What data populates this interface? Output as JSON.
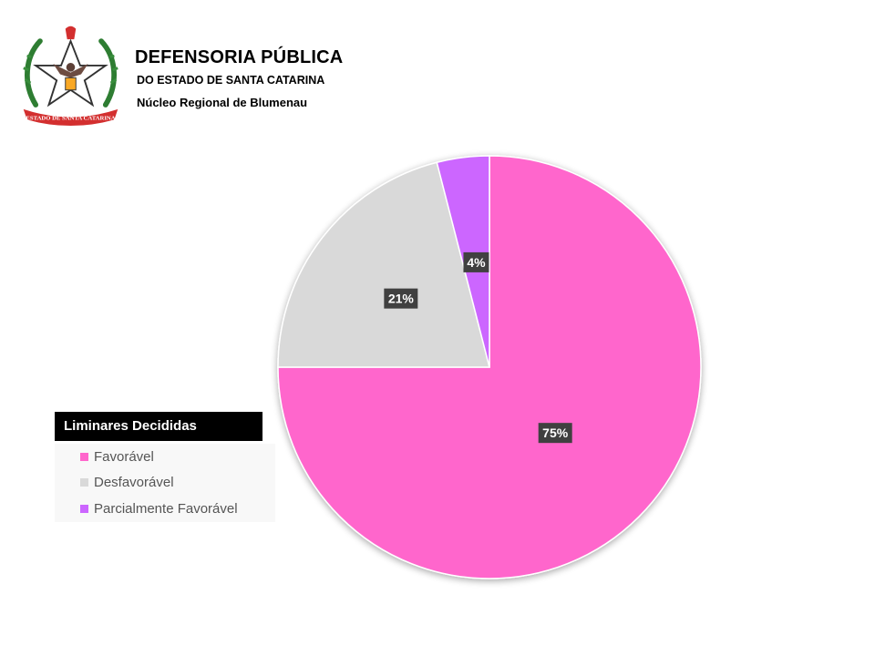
{
  "header": {
    "title": "DEFENSORIA PÚBLICA",
    "subtitle": "DO ESTADO DE SANTA CATARINA",
    "unit": "Núcleo Regional de Blumenau",
    "emblem_banner_text": "ESTADO DE SANTA CATARINA"
  },
  "legend": {
    "title": "Liminares Decididas",
    "items": [
      "Favorável",
      "Desfavorável",
      "Parcialmente Favorável"
    ]
  },
  "colors": {
    "favoravel": "#ff66cc",
    "desfavoravel": "#d9d9d9",
    "parcial": "#cc66ff",
    "label_bg": "#404040"
  },
  "chart_data": {
    "type": "pie",
    "title": "Liminares Decididas",
    "categories": [
      "Favorável",
      "Desfavorável",
      "Parcialmente Favorável"
    ],
    "values": [
      75,
      21,
      4
    ],
    "labels": [
      "75%",
      "21%",
      "4%"
    ],
    "start_angle_deg": 0,
    "direction": "clockwise",
    "legend_position": "left"
  }
}
